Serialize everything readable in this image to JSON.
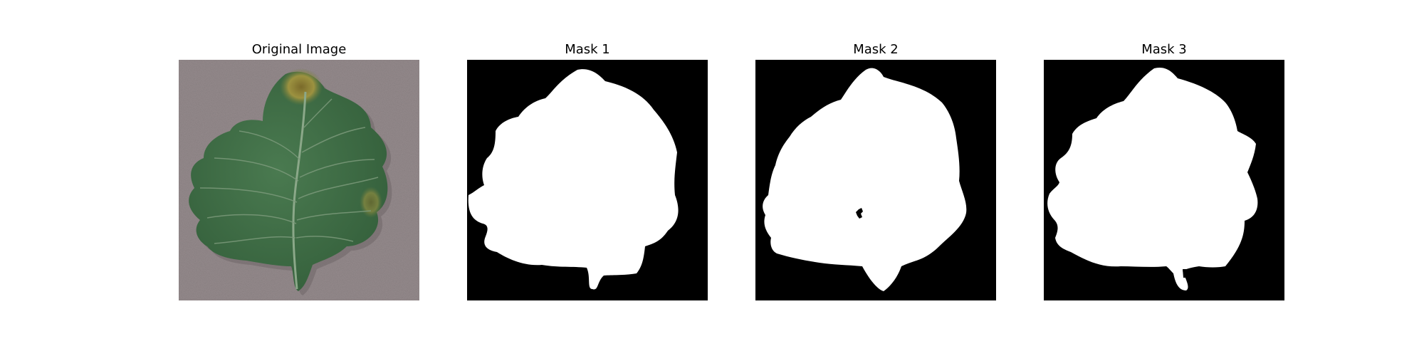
{
  "figure": {
    "panels": [
      {
        "title": "Original Image"
      },
      {
        "title": "Mask 1"
      },
      {
        "title": "Mask 2"
      },
      {
        "title": "Mask 3"
      }
    ],
    "colors": {
      "background": "#ffffff",
      "mask_background": "#000000",
      "mask_foreground": "#ffffff",
      "photo_backdrop": "#948a8c",
      "leaf_green": "#3f6f46",
      "leaf_dark": "#2f5a36",
      "leaf_vein": "#8ba889",
      "leaf_blight": "#9a8c3a"
    }
  }
}
